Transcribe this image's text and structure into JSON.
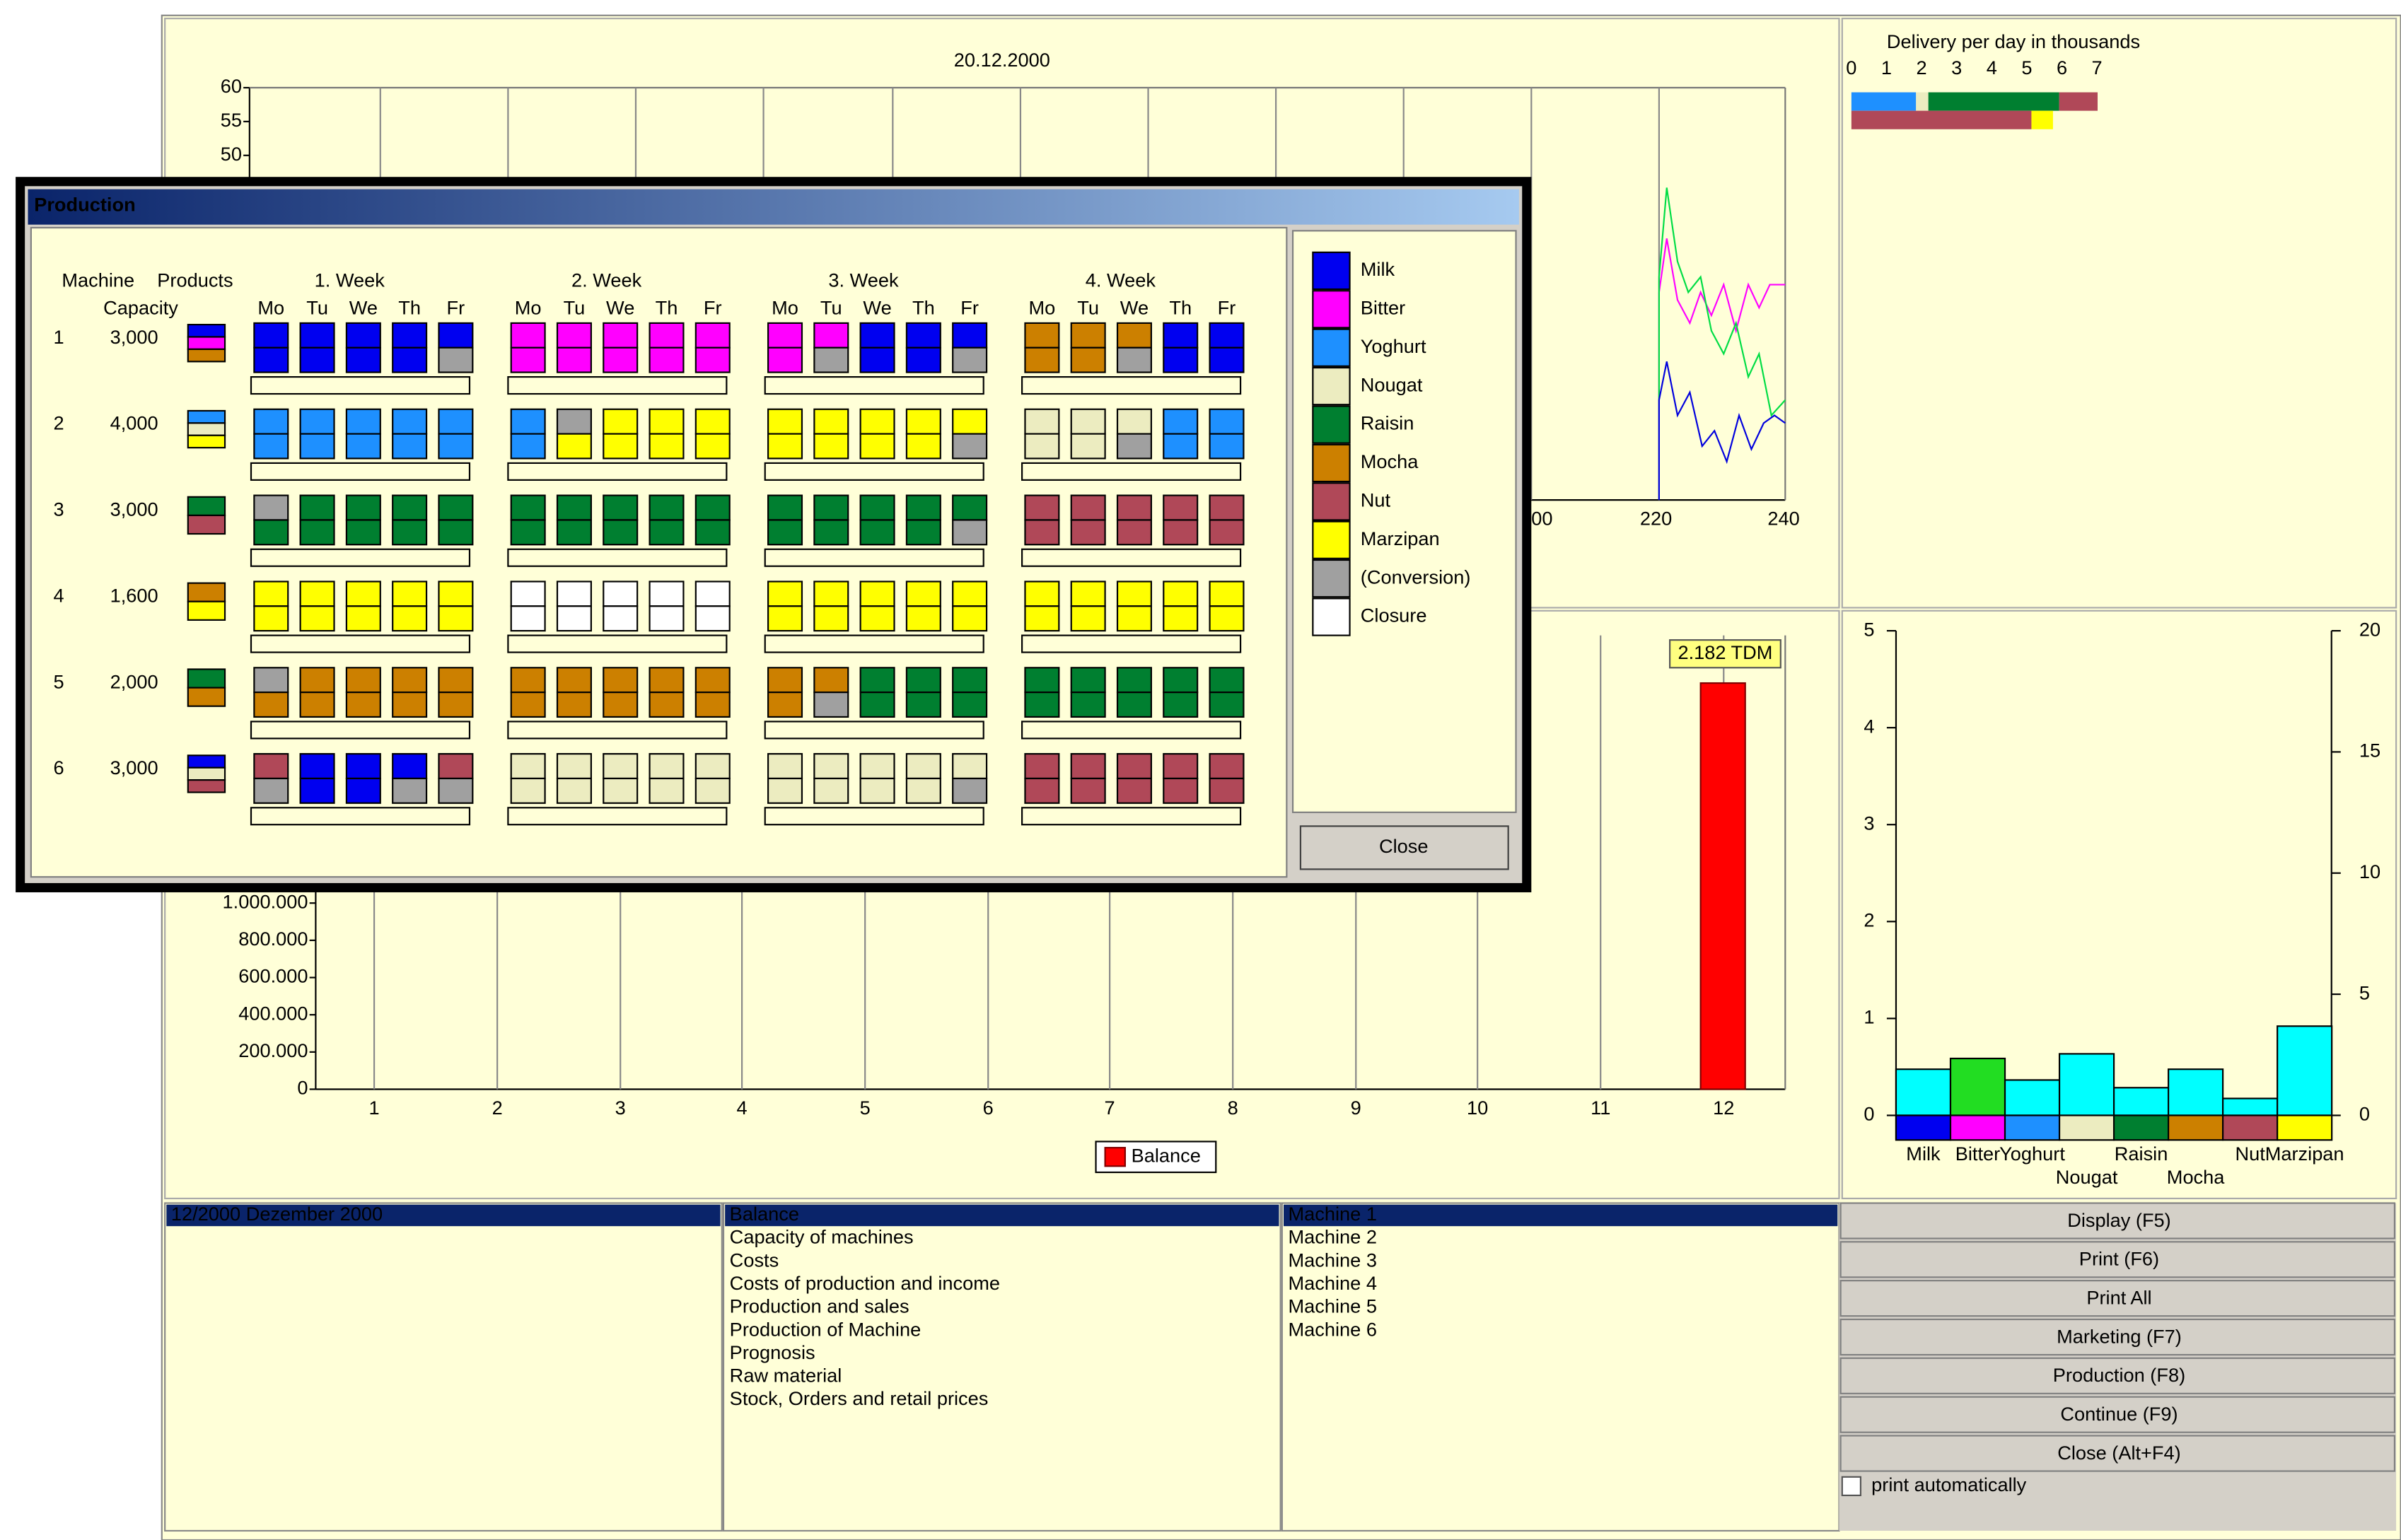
{
  "top_chart": {
    "title": "20.12.2000",
    "yticks": [
      "60",
      "55",
      "50"
    ],
    "xticks": [
      "00",
      "220",
      "240"
    ]
  },
  "delivery": {
    "title": "Delivery per day in thousands",
    "ticks": [
      "0",
      "1",
      "2",
      "3",
      "4",
      "5",
      "6",
      "7"
    ]
  },
  "balance_chart": {
    "yticks": [
      "1.000.000",
      "800.000",
      "600.000",
      "400.000",
      "200.000",
      "0"
    ],
    "xticks": [
      "1",
      "2",
      "3",
      "4",
      "5",
      "6",
      "7",
      "8",
      "9",
      "10",
      "11",
      "12"
    ],
    "annotation": "2.182 TDM",
    "legend": "Balance"
  },
  "product_chart": {
    "left_ticks": [
      "5",
      "4",
      "3",
      "2",
      "1",
      "0"
    ],
    "right_ticks": [
      "20",
      "15",
      "10",
      "5",
      "0"
    ],
    "categories": [
      "Milk",
      "Bitter",
      "Yoghurt",
      "Nougat",
      "Raisin",
      "Mocha",
      "Nut",
      "Marzipan"
    ]
  },
  "period_list": [
    "12/2000 Dezember 2000"
  ],
  "report_list": [
    "Balance",
    "Capacity of machines",
    "Costs",
    "Costs of production and income",
    "Production and sales",
    "Production of Machine",
    "Prognosis",
    "Raw material",
    "Stock, Orders and retail prices"
  ],
  "machine_list": [
    "Machine 1",
    "Machine 2",
    "Machine 3",
    "Machine 4",
    "Machine 5",
    "Machine 6"
  ],
  "buttons": [
    "Display (F5)",
    "Print (F6)",
    "Print All",
    "Marketing (F7)",
    "Production (F8)",
    "Continue (F9)",
    "Close (Alt+F4)"
  ],
  "checkbox": "print automatically",
  "dialog": {
    "title": "Production",
    "headers": {
      "machine": "Machine",
      "products": "Products",
      "capacity": "Capacity"
    },
    "weeks": [
      "1. Week",
      "2. Week",
      "3. Week",
      "4. Week"
    ],
    "days": [
      "Mo",
      "Tu",
      "We",
      "Th",
      "Fr"
    ],
    "machines": [
      {
        "number": "1",
        "capacity": "3,000"
      },
      {
        "number": "2",
        "capacity": "4,000"
      },
      {
        "number": "3",
        "capacity": "3,000"
      },
      {
        "number": "4",
        "capacity": "1,600"
      },
      {
        "number": "5",
        "capacity": "2,000"
      },
      {
        "number": "6",
        "capacity": "3,000"
      }
    ],
    "legend": [
      "Milk",
      "Bitter",
      "Yoghurt",
      "Nougat",
      "Raisin",
      "Mocha",
      "Nut",
      "Marzipan",
      "(Conversion)",
      "Closure"
    ],
    "close": "Close"
  }
}
